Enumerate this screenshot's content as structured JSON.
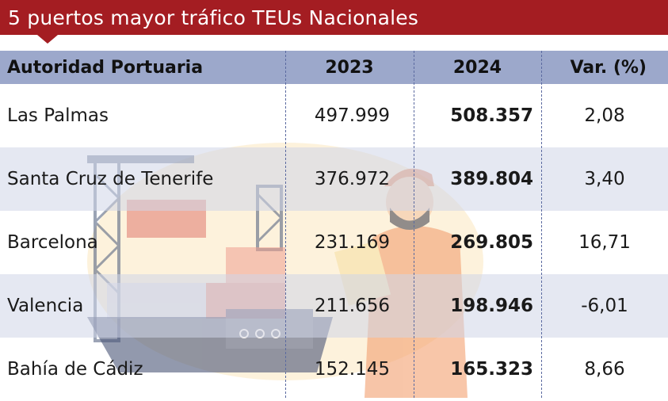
{
  "title": "5 puertos mayor tráfico TEUs Nacionales",
  "table": {
    "headers": {
      "authority": "Autoridad Portuaria",
      "y2023": "2023",
      "y2024": "2024",
      "var": "Var. (%)"
    },
    "rows": [
      {
        "authority": "Las Palmas",
        "y2023": "497.999",
        "y2024": "508.357",
        "var": "2,08"
      },
      {
        "authority": "Santa Cruz de Tenerife",
        "y2023": "376.972",
        "y2024": "389.804",
        "var": "3,40"
      },
      {
        "authority": "Barcelona",
        "y2023": "231.169",
        "y2024": "269.805",
        "var": "16,71"
      },
      {
        "authority": "Valencia",
        "y2023": "211.656",
        "y2024": "198.946",
        "var": "-6,01"
      },
      {
        "authority": "Bahía de Cádiz",
        "y2023": "152.145",
        "y2024": "165.323",
        "var": "8,66"
      }
    ]
  },
  "colors": {
    "title_bar": "#a41d22",
    "header_row": "#8e9cc4",
    "shaded_row": "#d0d6e8"
  },
  "illustration": {
    "icons": [
      "port-crane-icon",
      "container-ship-icon",
      "dock-worker-icon"
    ]
  }
}
